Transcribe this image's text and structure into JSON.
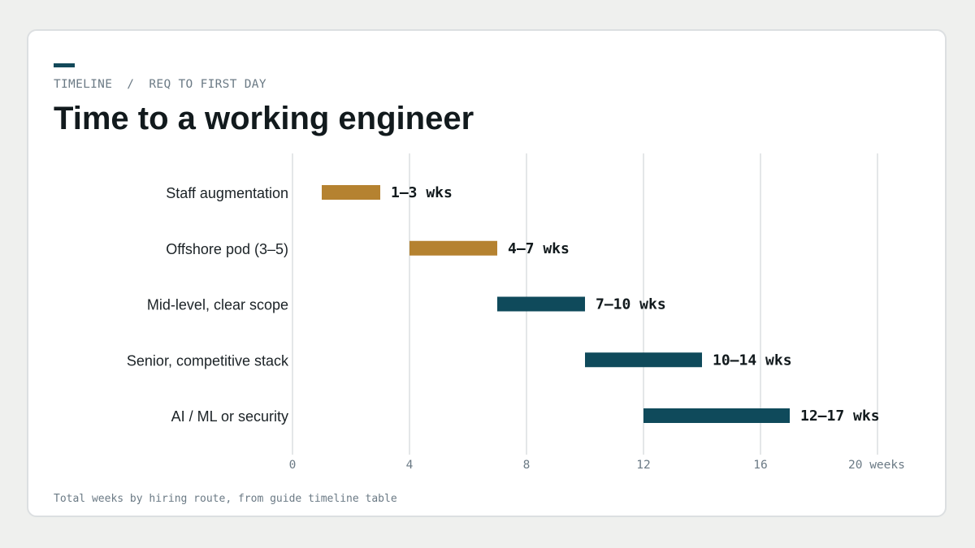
{
  "header": {
    "eyebrow": "TIMELINE  /  REQ TO FIRST DAY",
    "title": "Time to a working engineer"
  },
  "footnote": "Total weeks by hiring route, from guide timeline table",
  "colors": {
    "accent": "#13495a",
    "fast_route": "#b58230",
    "hire_route": "#0f4a5b"
  },
  "chart_data": {
    "type": "bar",
    "orientation": "horizontal-range",
    "title": "Time to a working engineer",
    "xlabel": "weeks",
    "xlim": [
      0,
      20
    ],
    "x_ticks": [
      0,
      4,
      8,
      12,
      16,
      20
    ],
    "x_tick_labels": [
      "0",
      "4",
      "8",
      "12",
      "16",
      "20 weeks"
    ],
    "grid": true,
    "categories": [
      "Staff augmentation",
      "Offshore pod (3–5)",
      "Mid-level, clear scope",
      "Senior, competitive stack",
      "AI / ML or security"
    ],
    "ranges": [
      {
        "start": 1,
        "end": 3,
        "label": "1–3 wks",
        "color": "#b58230"
      },
      {
        "start": 4,
        "end": 7,
        "label": "4–7 wks",
        "color": "#b58230"
      },
      {
        "start": 7,
        "end": 10,
        "label": "7–10 wks",
        "color": "#0f4a5b"
      },
      {
        "start": 10,
        "end": 14,
        "label": "10–14 wks",
        "color": "#0f4a5b"
      },
      {
        "start": 12,
        "end": 17,
        "label": "12–17 wks",
        "color": "#0f4a5b"
      }
    ]
  }
}
